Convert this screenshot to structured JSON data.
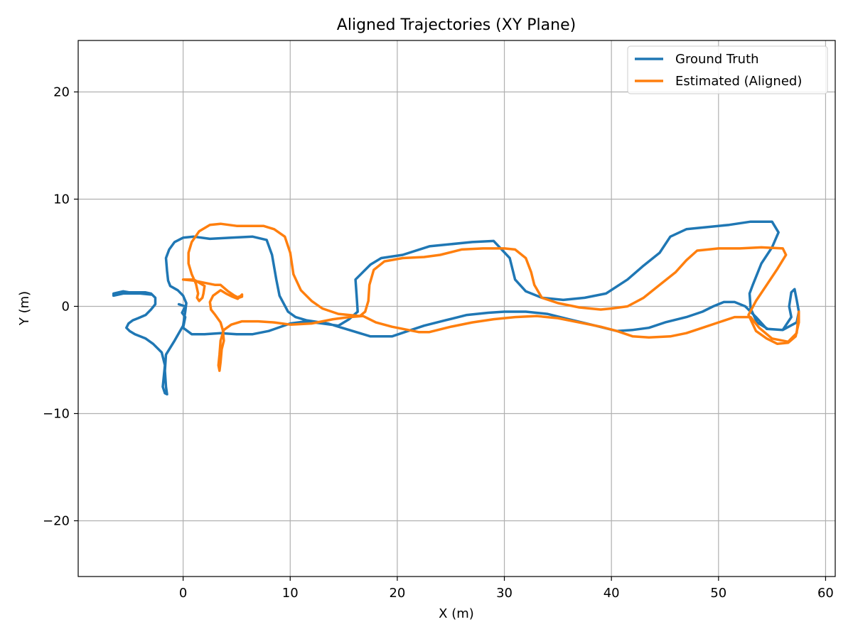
{
  "chart_data": {
    "type": "line",
    "title": "Aligned Trajectories (XY Plane)",
    "xlabel": "X (m)",
    "ylabel": "Y (m)",
    "xlim": [
      -9.8,
      60.9
    ],
    "ylim": [
      -25.2,
      24.8
    ],
    "xticks": [
      0,
      10,
      20,
      30,
      40,
      50,
      60
    ],
    "xtick_labels": [
      "0",
      "10",
      "20",
      "30",
      "40",
      "50",
      "60"
    ],
    "yticks": [
      -20,
      -10,
      0,
      10,
      20
    ],
    "ytick_labels": [
      "−20",
      "−10",
      "0",
      "10",
      "20"
    ],
    "grid": true,
    "legend_position": "top-right",
    "series": [
      {
        "name": "Ground Truth",
        "color": "#1f77b4",
        "points": [
          [
            -0.4,
            0.2
          ],
          [
            0.2,
            0.0
          ],
          [
            -0.1,
            -0.6
          ],
          [
            0.2,
            -1.0
          ],
          [
            0.0,
            -2.0
          ],
          [
            0.8,
            -2.6
          ],
          [
            2.0,
            -2.6
          ],
          [
            3.5,
            -2.5
          ],
          [
            5.0,
            -2.6
          ],
          [
            6.5,
            -2.6
          ],
          [
            8.0,
            -2.3
          ],
          [
            10.0,
            -1.6
          ],
          [
            11.5,
            -1.4
          ],
          [
            13.0,
            -1.6
          ],
          [
            14.5,
            -1.8
          ],
          [
            15.5,
            -1.2
          ],
          [
            16.3,
            -0.5
          ],
          [
            16.2,
            1.0
          ],
          [
            16.1,
            2.5
          ],
          [
            17.5,
            3.9
          ],
          [
            18.5,
            4.5
          ],
          [
            20.5,
            4.8
          ],
          [
            23.0,
            5.6
          ],
          [
            25.0,
            5.8
          ],
          [
            27.0,
            6.0
          ],
          [
            29.0,
            6.1
          ],
          [
            30.5,
            4.5
          ],
          [
            31.0,
            2.5
          ],
          [
            32.0,
            1.4
          ],
          [
            33.5,
            0.8
          ],
          [
            35.5,
            0.6
          ],
          [
            37.5,
            0.8
          ],
          [
            39.5,
            1.2
          ],
          [
            41.5,
            2.5
          ],
          [
            43.0,
            3.8
          ],
          [
            44.5,
            5.0
          ],
          [
            45.5,
            6.5
          ],
          [
            47.0,
            7.2
          ],
          [
            49.0,
            7.4
          ],
          [
            51.0,
            7.6
          ],
          [
            53.0,
            7.9
          ],
          [
            55.0,
            7.9
          ],
          [
            55.6,
            6.9
          ],
          [
            55.0,
            5.5
          ],
          [
            54.0,
            4.0
          ],
          [
            53.2,
            2.0
          ],
          [
            52.9,
            1.2
          ],
          [
            53.0,
            -0.2
          ],
          [
            53.6,
            -1.5
          ],
          [
            54.6,
            -2.1
          ],
          [
            56.0,
            -2.2
          ],
          [
            57.3,
            -1.5
          ],
          [
            57.5,
            -0.5
          ],
          [
            57.3,
            0.6
          ],
          [
            57.1,
            1.6
          ],
          [
            56.8,
            1.3
          ],
          [
            56.6,
            0.0
          ],
          [
            56.8,
            -1.0
          ],
          [
            56.0,
            -2.2
          ],
          [
            54.5,
            -2.1
          ],
          [
            53.5,
            -1.0
          ],
          [
            52.5,
            0.0
          ],
          [
            51.5,
            0.4
          ],
          [
            50.5,
            0.4
          ],
          [
            49.5,
            0.0
          ],
          [
            48.5,
            -0.5
          ],
          [
            47.0,
            -1.0
          ],
          [
            45.0,
            -1.5
          ],
          [
            43.5,
            -2.0
          ],
          [
            42.0,
            -2.2
          ],
          [
            40.5,
            -2.3
          ],
          [
            38.5,
            -1.8
          ],
          [
            36.0,
            -1.2
          ],
          [
            34.0,
            -0.7
          ],
          [
            32.0,
            -0.5
          ],
          [
            30.0,
            -0.5
          ],
          [
            28.5,
            -0.6
          ],
          [
            26.5,
            -0.8
          ],
          [
            24.5,
            -1.3
          ],
          [
            22.5,
            -1.8
          ],
          [
            21.0,
            -2.3
          ],
          [
            19.5,
            -2.8
          ],
          [
            17.5,
            -2.8
          ],
          [
            15.5,
            -2.2
          ],
          [
            13.5,
            -1.6
          ],
          [
            11.5,
            -1.3
          ],
          [
            10.5,
            -1.0
          ],
          [
            9.8,
            -0.5
          ],
          [
            9.0,
            1.0
          ],
          [
            8.7,
            2.5
          ],
          [
            8.3,
            4.8
          ],
          [
            7.8,
            6.2
          ],
          [
            6.5,
            6.5
          ],
          [
            4.5,
            6.4
          ],
          [
            2.5,
            6.3
          ],
          [
            1.0,
            6.5
          ],
          [
            0.0,
            6.4
          ],
          [
            -0.8,
            6.0
          ],
          [
            -1.3,
            5.3
          ],
          [
            -1.6,
            4.5
          ],
          [
            -1.5,
            3.3
          ],
          [
            -1.4,
            2.4
          ],
          [
            -1.2,
            1.9
          ],
          [
            -0.5,
            1.5
          ],
          [
            0.0,
            1.0
          ],
          [
            0.3,
            0.3
          ],
          [
            0.2,
            -0.5
          ],
          [
            0.0,
            -1.8
          ],
          [
            -0.8,
            -3.2
          ],
          [
            -1.6,
            -4.5
          ],
          [
            -1.7,
            -6.0
          ],
          [
            -1.6,
            -7.5
          ],
          [
            -1.5,
            -8.2
          ],
          [
            -1.7,
            -8.1
          ],
          [
            -1.9,
            -7.5
          ],
          [
            -1.7,
            -5.5
          ],
          [
            -2.0,
            -4.3
          ],
          [
            -2.8,
            -3.5
          ],
          [
            -3.5,
            -3.0
          ],
          [
            -4.5,
            -2.6
          ],
          [
            -5.0,
            -2.3
          ],
          [
            -5.3,
            -2.0
          ],
          [
            -5.1,
            -1.6
          ],
          [
            -4.7,
            -1.3
          ],
          [
            -4.2,
            -1.1
          ],
          [
            -3.5,
            -0.8
          ],
          [
            -3.0,
            -0.3
          ],
          [
            -2.6,
            0.2
          ],
          [
            -2.6,
            0.8
          ],
          [
            -3.0,
            1.2
          ],
          [
            -3.5,
            1.3
          ],
          [
            -4.5,
            1.3
          ],
          [
            -5.0,
            1.3
          ],
          [
            -5.6,
            1.4
          ],
          [
            -6.5,
            1.2
          ],
          [
            -6.5,
            1.0
          ],
          [
            -5.6,
            1.2
          ],
          [
            -4.8,
            1.2
          ],
          [
            -4.0,
            1.2
          ],
          [
            -3.0,
            1.1
          ]
        ]
      },
      {
        "name": "Estimated (Aligned)",
        "color": "#ff7f0e",
        "points": [
          [
            5.5,
            1.0
          ],
          [
            5.2,
            0.9
          ],
          [
            5.5,
            0.9
          ],
          [
            5.2,
            0.8
          ],
          [
            4.8,
            1.0
          ],
          [
            4.2,
            1.4
          ],
          [
            3.5,
            2.0
          ],
          [
            3.0,
            2.0
          ],
          [
            2.0,
            2.2
          ],
          [
            1.0,
            2.4
          ],
          [
            0.0,
            2.5
          ],
          [
            1.0,
            2.5
          ],
          [
            2.0,
            1.9
          ],
          [
            1.9,
            1.2
          ],
          [
            1.8,
            0.8
          ],
          [
            1.5,
            0.5
          ],
          [
            1.3,
            0.8
          ],
          [
            1.4,
            1.2
          ],
          [
            1.2,
            2.1
          ],
          [
            0.8,
            3.0
          ],
          [
            0.5,
            4.0
          ],
          [
            0.5,
            5.0
          ],
          [
            0.8,
            6.0
          ],
          [
            1.5,
            7.0
          ],
          [
            2.5,
            7.6
          ],
          [
            3.5,
            7.7
          ],
          [
            5.0,
            7.5
          ],
          [
            6.5,
            7.5
          ],
          [
            7.5,
            7.5
          ],
          [
            8.5,
            7.2
          ],
          [
            9.5,
            6.5
          ],
          [
            10.0,
            5.0
          ],
          [
            10.3,
            3.0
          ],
          [
            11.0,
            1.5
          ],
          [
            12.0,
            0.5
          ],
          [
            13.0,
            -0.2
          ],
          [
            14.5,
            -0.7
          ],
          [
            15.5,
            -0.8
          ],
          [
            16.5,
            -0.9
          ],
          [
            17.0,
            -0.5
          ],
          [
            17.3,
            0.5
          ],
          [
            17.4,
            2.0
          ],
          [
            17.8,
            3.4
          ],
          [
            18.8,
            4.2
          ],
          [
            20.5,
            4.5
          ],
          [
            22.5,
            4.6
          ],
          [
            24.0,
            4.8
          ],
          [
            26.0,
            5.3
          ],
          [
            28.0,
            5.4
          ],
          [
            30.0,
            5.4
          ],
          [
            31.0,
            5.3
          ],
          [
            32.0,
            4.5
          ],
          [
            32.5,
            3.2
          ],
          [
            32.8,
            2.0
          ],
          [
            33.5,
            0.8
          ],
          [
            35.0,
            0.3
          ],
          [
            37.0,
            -0.1
          ],
          [
            39.0,
            -0.3
          ],
          [
            40.0,
            -0.2
          ],
          [
            41.5,
            0.0
          ],
          [
            43.0,
            0.8
          ],
          [
            44.5,
            2.0
          ],
          [
            46.0,
            3.2
          ],
          [
            47.0,
            4.3
          ],
          [
            48.0,
            5.2
          ],
          [
            50.0,
            5.4
          ],
          [
            52.0,
            5.4
          ],
          [
            54.0,
            5.5
          ],
          [
            56.0,
            5.4
          ],
          [
            56.3,
            4.8
          ],
          [
            55.5,
            3.5
          ],
          [
            54.5,
            2.0
          ],
          [
            53.5,
            0.5
          ],
          [
            52.8,
            -0.8
          ],
          [
            53.5,
            -2.3
          ],
          [
            54.5,
            -3.0
          ],
          [
            55.5,
            -3.5
          ],
          [
            56.5,
            -3.4
          ],
          [
            57.2,
            -2.8
          ],
          [
            57.5,
            -1.5
          ],
          [
            57.5,
            -0.5
          ],
          [
            57.3,
            -2.5
          ],
          [
            56.5,
            -3.3
          ],
          [
            55.0,
            -3.0
          ],
          [
            53.8,
            -2.0
          ],
          [
            53.0,
            -1.0
          ],
          [
            51.5,
            -1.0
          ],
          [
            50.0,
            -1.5
          ],
          [
            48.5,
            -2.0
          ],
          [
            47.0,
            -2.5
          ],
          [
            45.5,
            -2.8
          ],
          [
            43.5,
            -2.9
          ],
          [
            42.0,
            -2.8
          ],
          [
            40.5,
            -2.3
          ],
          [
            39.0,
            -1.9
          ],
          [
            37.0,
            -1.5
          ],
          [
            35.0,
            -1.1
          ],
          [
            33.0,
            -0.9
          ],
          [
            31.0,
            -1.0
          ],
          [
            29.0,
            -1.2
          ],
          [
            27.0,
            -1.5
          ],
          [
            25.0,
            -1.9
          ],
          [
            23.0,
            -2.4
          ],
          [
            22.0,
            -2.4
          ],
          [
            21.0,
            -2.2
          ],
          [
            19.5,
            -1.9
          ],
          [
            18.0,
            -1.5
          ],
          [
            16.8,
            -0.9
          ],
          [
            15.5,
            -1.0
          ],
          [
            14.0,
            -1.2
          ],
          [
            12.0,
            -1.6
          ],
          [
            10.0,
            -1.7
          ],
          [
            8.5,
            -1.5
          ],
          [
            7.0,
            -1.4
          ],
          [
            5.5,
            -1.4
          ],
          [
            4.5,
            -1.7
          ],
          [
            3.8,
            -2.2
          ],
          [
            3.5,
            -3.2
          ],
          [
            3.4,
            -4.5
          ],
          [
            3.3,
            -5.5
          ],
          [
            3.4,
            -6.0
          ],
          [
            3.5,
            -5.2
          ],
          [
            3.6,
            -4.0
          ],
          [
            3.8,
            -3.2
          ],
          [
            3.7,
            -2.2
          ],
          [
            3.5,
            -1.5
          ],
          [
            3.0,
            -0.8
          ],
          [
            2.6,
            -0.3
          ],
          [
            2.5,
            0.4
          ],
          [
            2.8,
            1.0
          ],
          [
            3.5,
            1.5
          ],
          [
            4.0,
            1.2
          ],
          [
            4.6,
            0.9
          ],
          [
            5.1,
            0.7
          ],
          [
            5.5,
            1.1
          ]
        ]
      }
    ]
  }
}
